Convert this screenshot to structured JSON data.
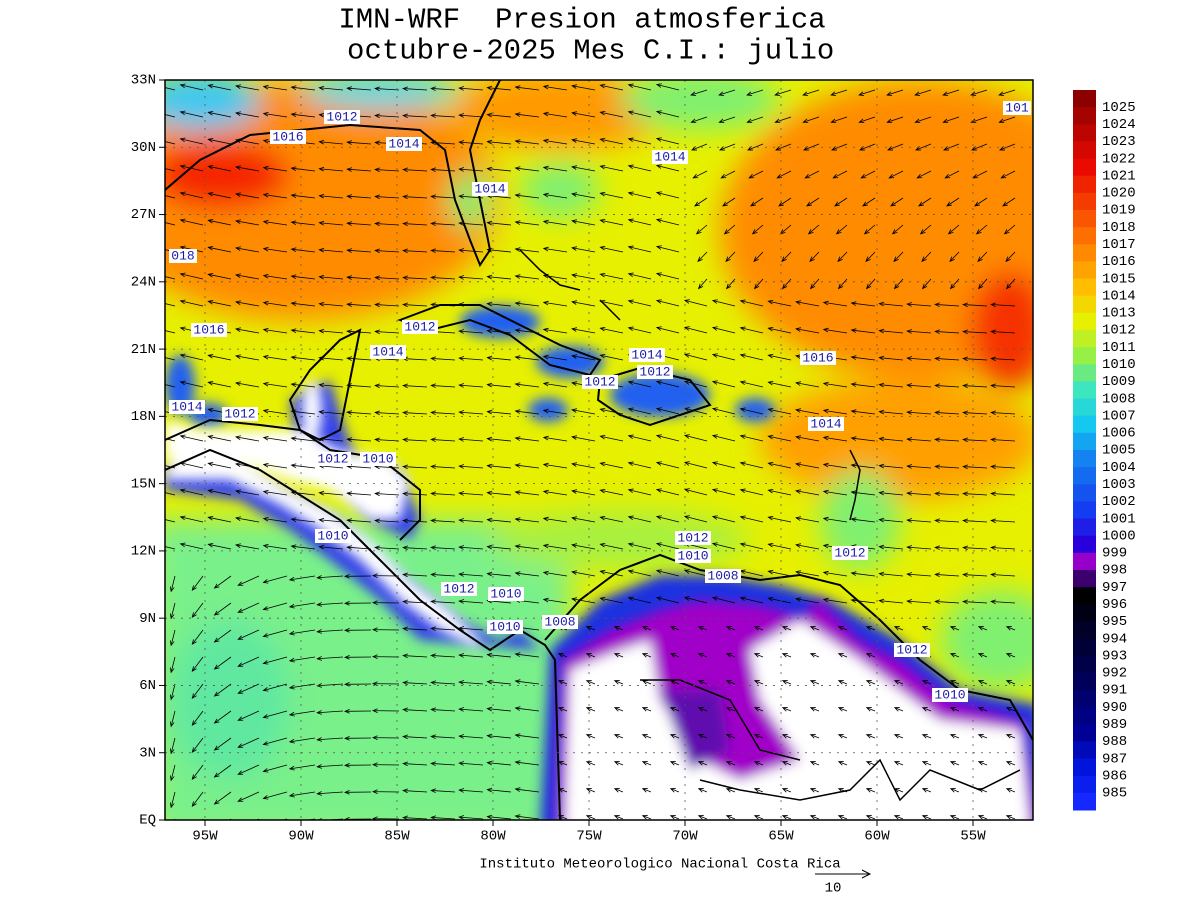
{
  "title": [
    "IMN-WRF  Presion atmosferica",
    " octubre-2025 Mes C.I.: julio"
  ],
  "latitude_labels": [
    "33N",
    "30N",
    "27N",
    "24N",
    "21N",
    "18N",
    "15N",
    "12N",
    "9N",
    "6N",
    "3N",
    "EQ"
  ],
  "longitude_labels": [
    "95W",
    "90W",
    "85W",
    "80W",
    "75W",
    "70W",
    "65W",
    "60W",
    "55W"
  ],
  "colorbar": {
    "levels": [
      1025,
      1024,
      1023,
      1022,
      1021,
      1020,
      1019,
      1018,
      1017,
      1016,
      1015,
      1014,
      1013,
      1012,
      1011,
      1010,
      1009,
      1008,
      1007,
      1006,
      1005,
      1004,
      1003,
      1002,
      1001,
      1000,
      999,
      998,
      997,
      996,
      995,
      994,
      993,
      992,
      991,
      990,
      989,
      988,
      987,
      986,
      985
    ]
  },
  "contour_labels": [
    "1012",
    "1016",
    "1014",
    "1014",
    "1014",
    "018",
    "1016",
    "1012",
    "1014",
    "1014",
    "1012",
    "1012",
    "1016",
    "1014",
    "1012",
    "1014",
    "1012",
    "1010",
    "1010",
    "1012",
    "1010",
    "1008",
    "1012",
    "1012",
    "1010",
    "1010",
    "1008",
    "1012",
    "1010",
    "101"
  ],
  "credit": "Instituto Meteorologico Nacional Costa Rica",
  "vector_reference": "10"
}
